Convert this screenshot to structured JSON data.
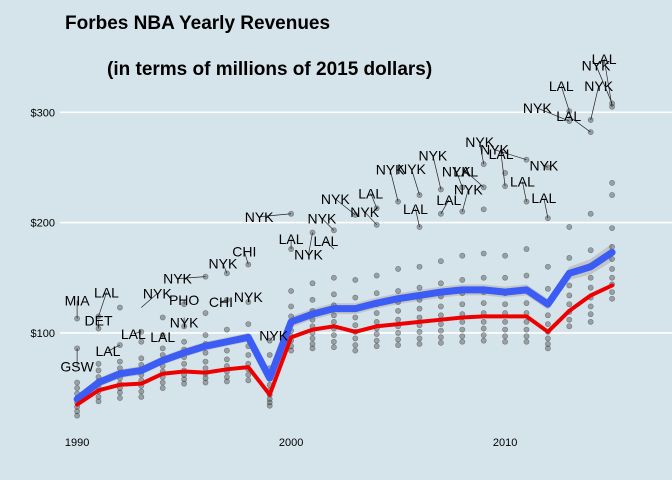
{
  "chart_data": {
    "type": "scatter",
    "title": "Forbes NBA Yearly Revenues",
    "subtitle": "(in terms of millions of 2015 dollars)",
    "xlabel": "",
    "ylabel": "",
    "xlim": [
      1989.2,
      2017.8
    ],
    "ylim": [
      12,
      322
    ],
    "x_ticks": [
      1990,
      2000,
      2010
    ],
    "x_tick_labels": [
      "1990",
      "2000",
      "2010"
    ],
    "y_ticks": [
      100,
      200,
      300
    ],
    "y_tick_labels": [
      "$100",
      "$200",
      "$300"
    ],
    "grid": "horizontal",
    "legend": "none",
    "colors": {
      "background": "#d5e4eb",
      "grid": "#ffffff",
      "points": "#333333",
      "mean_line": "#3b5cf5",
      "ribbon": "#bcbcbc",
      "median_line": "#ee0000"
    },
    "series": [
      {
        "name": "",
        "kind": "mean",
        "x": [
          1990,
          1991,
          1992,
          1993,
          1994,
          1995,
          1996,
          1997,
          1998,
          1999,
          2000,
          2001,
          2002,
          2003,
          2004,
          2005,
          2006,
          2007,
          2008,
          2009,
          2010,
          2011,
          2012,
          2013,
          2014,
          2015
        ],
        "values": [
          40,
          55,
          63,
          66,
          75,
          82,
          88,
          92,
          96,
          59,
          110,
          117,
          122,
          122,
          127,
          131,
          134,
          137,
          139,
          139,
          137,
          139,
          126,
          154,
          160,
          173
        ],
        "ci_lower": [
          36,
          51,
          59,
          62,
          71,
          78,
          84,
          88,
          92,
          55,
          105,
          112,
          117,
          117,
          122,
          126,
          129,
          132,
          134,
          134,
          132,
          134,
          121,
          148,
          153,
          165
        ],
        "ci_upper": [
          44,
          59,
          67,
          70,
          79,
          86,
          92,
          96,
          100,
          63,
          115,
          122,
          127,
          127,
          132,
          136,
          139,
          142,
          144,
          144,
          142,
          144,
          131,
          160,
          167,
          181
        ]
      },
      {
        "name": "",
        "kind": "median",
        "x": [
          1990,
          1991,
          1992,
          1993,
          1994,
          1995,
          1996,
          1997,
          1998,
          1999,
          2000,
          2001,
          2002,
          2003,
          2004,
          2005,
          2006,
          2007,
          2008,
          2009,
          2010,
          2011,
          2012,
          2013,
          2014,
          2015
        ],
        "values": [
          35,
          48,
          53,
          54,
          63,
          65,
          64,
          67,
          69,
          44,
          96,
          103,
          106,
          101,
          106,
          108,
          110,
          112,
          114,
          115,
          115,
          115,
          101,
          120,
          134,
          143
        ]
      }
    ],
    "points": [
      [
        1990,
        25
      ],
      [
        1990,
        29
      ],
      [
        1990,
        33
      ],
      [
        1990,
        37
      ],
      [
        1990,
        40
      ],
      [
        1990,
        45
      ],
      [
        1990,
        50
      ],
      [
        1990,
        55
      ],
      [
        1990,
        113
      ],
      [
        1990,
        86
      ],
      [
        1991,
        38
      ],
      [
        1991,
        42
      ],
      [
        1991,
        47
      ],
      [
        1991,
        51
      ],
      [
        1991,
        56
      ],
      [
        1991,
        60
      ],
      [
        1991,
        66
      ],
      [
        1991,
        72
      ],
      [
        1991,
        115
      ],
      [
        1991,
        104
      ],
      [
        1992,
        41
      ],
      [
        1992,
        46
      ],
      [
        1992,
        50
      ],
      [
        1992,
        54
      ],
      [
        1992,
        59
      ],
      [
        1992,
        63
      ],
      [
        1992,
        68
      ],
      [
        1992,
        74
      ],
      [
        1992,
        89
      ],
      [
        1992,
        123
      ],
      [
        1993,
        42
      ],
      [
        1993,
        47
      ],
      [
        1993,
        52
      ],
      [
        1993,
        57
      ],
      [
        1993,
        62
      ],
      [
        1993,
        66
      ],
      [
        1993,
        71
      ],
      [
        1993,
        77
      ],
      [
        1993,
        92
      ],
      [
        1993,
        101
      ],
      [
        1994,
        50
      ],
      [
        1994,
        55
      ],
      [
        1994,
        60
      ],
      [
        1994,
        65
      ],
      [
        1994,
        70
      ],
      [
        1994,
        75
      ],
      [
        1994,
        80
      ],
      [
        1994,
        86
      ],
      [
        1994,
        98
      ],
      [
        1994,
        114
      ],
      [
        1995,
        54
      ],
      [
        1995,
        58
      ],
      [
        1995,
        62
      ],
      [
        1995,
        66
      ],
      [
        1995,
        72
      ],
      [
        1995,
        78
      ],
      [
        1995,
        85
      ],
      [
        1995,
        92
      ],
      [
        1995,
        106
      ],
      [
        1995,
        126
      ],
      [
        1996,
        55
      ],
      [
        1996,
        59
      ],
      [
        1996,
        63
      ],
      [
        1996,
        68
      ],
      [
        1996,
        74
      ],
      [
        1996,
        82
      ],
      [
        1996,
        90
      ],
      [
        1996,
        98
      ],
      [
        1996,
        118
      ],
      [
        1996,
        151
      ],
      [
        1997,
        56
      ],
      [
        1997,
        60
      ],
      [
        1997,
        65
      ],
      [
        1997,
        70
      ],
      [
        1997,
        76
      ],
      [
        1997,
        84
      ],
      [
        1997,
        92
      ],
      [
        1997,
        103
      ],
      [
        1997,
        130
      ],
      [
        1997,
        154
      ],
      [
        1998,
        57
      ],
      [
        1998,
        62
      ],
      [
        1998,
        67
      ],
      [
        1998,
        72
      ],
      [
        1998,
        80
      ],
      [
        1998,
        88
      ],
      [
        1998,
        96
      ],
      [
        1998,
        108
      ],
      [
        1998,
        128
      ],
      [
        1998,
        162
      ],
      [
        1999,
        34
      ],
      [
        1999,
        37
      ],
      [
        1999,
        40
      ],
      [
        1999,
        44
      ],
      [
        1999,
        48
      ],
      [
        1999,
        53
      ],
      [
        1999,
        60
      ],
      [
        1999,
        68
      ],
      [
        1999,
        80
      ],
      [
        1999,
        93
      ],
      [
        2000,
        84
      ],
      [
        2000,
        88
      ],
      [
        2000,
        93
      ],
      [
        2000,
        97
      ],
      [
        2000,
        102
      ],
      [
        2000,
        108
      ],
      [
        2000,
        115
      ],
      [
        2000,
        124
      ],
      [
        2000,
        138
      ],
      [
        2000,
        176
      ],
      [
        2000,
        208
      ],
      [
        2001,
        86
      ],
      [
        2001,
        90
      ],
      [
        2001,
        95
      ],
      [
        2001,
        100
      ],
      [
        2001,
        106
      ],
      [
        2001,
        112
      ],
      [
        2001,
        120
      ],
      [
        2001,
        130
      ],
      [
        2001,
        145
      ],
      [
        2001,
        191
      ],
      [
        2002,
        87
      ],
      [
        2002,
        92
      ],
      [
        2002,
        98
      ],
      [
        2002,
        104
      ],
      [
        2002,
        110
      ],
      [
        2002,
        116
      ],
      [
        2002,
        125
      ],
      [
        2002,
        135
      ],
      [
        2002,
        150
      ],
      [
        2002,
        193
      ],
      [
        2003,
        84
      ],
      [
        2003,
        89
      ],
      [
        2003,
        95
      ],
      [
        2003,
        101
      ],
      [
        2003,
        107
      ],
      [
        2003,
        114
      ],
      [
        2003,
        122
      ],
      [
        2003,
        132
      ],
      [
        2003,
        148
      ],
      [
        2003,
        207
      ],
      [
        2004,
        88
      ],
      [
        2004,
        93
      ],
      [
        2004,
        99
      ],
      [
        2004,
        104
      ],
      [
        2004,
        110
      ],
      [
        2004,
        118
      ],
      [
        2004,
        126
      ],
      [
        2004,
        136
      ],
      [
        2004,
        152
      ],
      [
        2004,
        213
      ],
      [
        2004,
        198
      ],
      [
        2005,
        89
      ],
      [
        2005,
        94
      ],
      [
        2005,
        100
      ],
      [
        2005,
        106
      ],
      [
        2005,
        112
      ],
      [
        2005,
        120
      ],
      [
        2005,
        128
      ],
      [
        2005,
        138
      ],
      [
        2005,
        158
      ],
      [
        2005,
        219
      ],
      [
        2006,
        90
      ],
      [
        2006,
        95
      ],
      [
        2006,
        101
      ],
      [
        2006,
        107
      ],
      [
        2006,
        114
      ],
      [
        2006,
        122
      ],
      [
        2006,
        130
      ],
      [
        2006,
        141
      ],
      [
        2006,
        160
      ],
      [
        2006,
        196
      ],
      [
        2006,
        225
      ],
      [
        2007,
        91
      ],
      [
        2007,
        96
      ],
      [
        2007,
        102
      ],
      [
        2007,
        108
      ],
      [
        2007,
        116
      ],
      [
        2007,
        124
      ],
      [
        2007,
        133
      ],
      [
        2007,
        145
      ],
      [
        2007,
        165
      ],
      [
        2007,
        208
      ],
      [
        2007,
        230
      ],
      [
        2008,
        92
      ],
      [
        2008,
        97
      ],
      [
        2008,
        103
      ],
      [
        2008,
        110
      ],
      [
        2008,
        117
      ],
      [
        2008,
        126
      ],
      [
        2008,
        136
      ],
      [
        2008,
        148
      ],
      [
        2008,
        170
      ],
      [
        2008,
        210
      ],
      [
        2008,
        232
      ],
      [
        2009,
        93
      ],
      [
        2009,
        98
      ],
      [
        2009,
        104
      ],
      [
        2009,
        110
      ],
      [
        2009,
        118
      ],
      [
        2009,
        127
      ],
      [
        2009,
        137
      ],
      [
        2009,
        150
      ],
      [
        2009,
        172
      ],
      [
        2009,
        212
      ],
      [
        2009,
        232
      ],
      [
        2009,
        253
      ],
      [
        2010,
        92
      ],
      [
        2010,
        97
      ],
      [
        2010,
        103
      ],
      [
        2010,
        110
      ],
      [
        2010,
        118
      ],
      [
        2010,
        126
      ],
      [
        2010,
        136
      ],
      [
        2010,
        150
      ],
      [
        2010,
        170
      ],
      [
        2010,
        233
      ],
      [
        2010,
        245
      ],
      [
        2011,
        92
      ],
      [
        2011,
        97
      ],
      [
        2011,
        103
      ],
      [
        2011,
        110
      ],
      [
        2011,
        118
      ],
      [
        2011,
        127
      ],
      [
        2011,
        138
      ],
      [
        2011,
        152
      ],
      [
        2011,
        176
      ],
      [
        2011,
        219
      ],
      [
        2011,
        257
      ],
      [
        2012,
        86
      ],
      [
        2012,
        90
      ],
      [
        2012,
        95
      ],
      [
        2012,
        101
      ],
      [
        2012,
        108
      ],
      [
        2012,
        116
      ],
      [
        2012,
        126
      ],
      [
        2012,
        140
      ],
      [
        2012,
        160
      ],
      [
        2012,
        204
      ],
      [
        2012,
        250
      ],
      [
        2013,
        106
      ],
      [
        2013,
        112
      ],
      [
        2013,
        119
      ],
      [
        2013,
        126
      ],
      [
        2013,
        134
      ],
      [
        2013,
        143
      ],
      [
        2013,
        154
      ],
      [
        2013,
        168
      ],
      [
        2013,
        196
      ],
      [
        2013,
        292
      ],
      [
        2013,
        301
      ],
      [
        2014,
        110
      ],
      [
        2014,
        117
      ],
      [
        2014,
        124
      ],
      [
        2014,
        132
      ],
      [
        2014,
        141
      ],
      [
        2014,
        150
      ],
      [
        2014,
        161
      ],
      [
        2014,
        175
      ],
      [
        2014,
        208
      ],
      [
        2014,
        282
      ],
      [
        2014,
        293
      ],
      [
        2015,
        131
      ],
      [
        2015,
        137
      ],
      [
        2015,
        144
      ],
      [
        2015,
        150
      ],
      [
        2015,
        158
      ],
      [
        2015,
        167
      ],
      [
        2015,
        178
      ],
      [
        2015,
        195
      ],
      [
        2015,
        225
      ],
      [
        2015,
        236
      ],
      [
        2015,
        305
      ],
      [
        2015,
        308
      ]
    ],
    "annotations": [
      {
        "text": "MIA",
        "x": 1990,
        "y": 113
      },
      {
        "text": "GSW",
        "x": 1990,
        "y": 86
      },
      {
        "text": "DET",
        "x": 1991,
        "y": 104
      },
      {
        "text": "LAL",
        "x": 1991,
        "y": 115
      },
      {
        "text": "LAL",
        "x": 1992,
        "y": 89
      },
      {
        "text": "LAL",
        "x": 1993,
        "y": 101
      },
      {
        "text": "NYK",
        "x": 1993,
        "y": 123
      },
      {
        "text": "LAL",
        "x": 1994,
        "y": 98
      },
      {
        "text": "PHO",
        "x": 1995,
        "y": 126
      },
      {
        "text": "NYK",
        "x": 1995,
        "y": 114
      },
      {
        "text": "NYK",
        "x": 1996,
        "y": 151
      },
      {
        "text": "NYK",
        "x": 1997,
        "y": 154
      },
      {
        "text": "CHI",
        "x": 1997,
        "y": 130
      },
      {
        "text": "CHI",
        "x": 1998,
        "y": 162
      },
      {
        "text": "NYK",
        "x": 1998,
        "y": 128
      },
      {
        "text": "NYK",
        "x": 1999,
        "y": 93
      },
      {
        "text": "NYK",
        "x": 2000,
        "y": 208
      },
      {
        "text": "LAL",
        "x": 2000,
        "y": 176
      },
      {
        "text": "NYK",
        "x": 2001,
        "y": 191
      },
      {
        "text": "NYK",
        "x": 2002,
        "y": 193
      },
      {
        "text": "LAL",
        "x": 2002,
        "y": 176
      },
      {
        "text": "NYK",
        "x": 2003,
        "y": 207
      },
      {
        "text": "LAL",
        "x": 2004,
        "y": 213
      },
      {
        "text": "NYK",
        "x": 2004,
        "y": 198
      },
      {
        "text": "NYK",
        "x": 2005,
        "y": 219
      },
      {
        "text": "LAL",
        "x": 2006,
        "y": 196
      },
      {
        "text": "NYK",
        "x": 2006,
        "y": 225
      },
      {
        "text": "NYK",
        "x": 2007,
        "y": 230
      },
      {
        "text": "LAL",
        "x": 2007,
        "y": 208
      },
      {
        "text": "NYK",
        "x": 2008,
        "y": 232
      },
      {
        "text": "NYK",
        "x": 2008,
        "y": 210
      },
      {
        "text": "NYK",
        "x": 2009,
        "y": 253
      },
      {
        "text": "LAL",
        "x": 2009,
        "y": 232
      },
      {
        "text": "LAL",
        "x": 2010,
        "y": 233
      },
      {
        "text": "NYK",
        "x": 2011,
        "y": 257
      },
      {
        "text": "LAL",
        "x": 2011,
        "y": 219
      },
      {
        "text": "NYK",
        "x": 2012,
        "y": 250
      },
      {
        "text": "LAL",
        "x": 2012,
        "y": 204
      },
      {
        "text": "LAL",
        "x": 2013,
        "y": 301
      },
      {
        "text": "NYK",
        "x": 2013,
        "y": 292
      },
      {
        "text": "LAL",
        "x": 2014,
        "y": 282
      },
      {
        "text": "NYK",
        "x": 2014,
        "y": 293
      },
      {
        "text": "NYK",
        "x": 2015,
        "y": 308
      },
      {
        "text": "LAL",
        "x": 2015,
        "y": 305
      }
    ]
  }
}
